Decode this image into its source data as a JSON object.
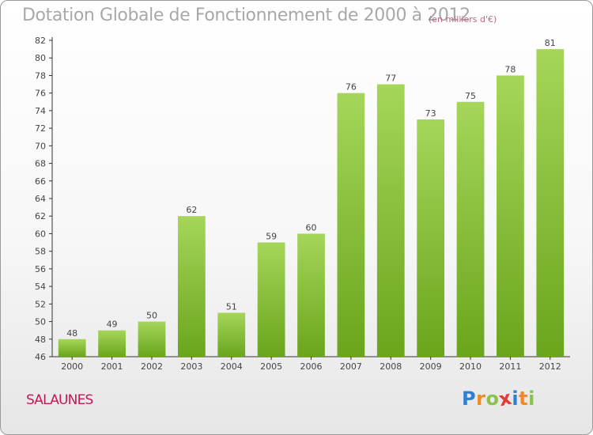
{
  "header": {
    "title": "Dotation Globale de Fonctionnement de 2000 à 2012",
    "unit_note": "(en milliers d'€)"
  },
  "commune": "SALAUNES",
  "brand": {
    "letters": [
      "P",
      "r",
      "o",
      "x",
      "i",
      "t",
      "i"
    ],
    "text": "Proxiti",
    "letter_colors": [
      "#2f7fd2",
      "#f08a1d",
      "#8bc34a",
      "#e53935",
      "#2f7fd2",
      "#f08a1d",
      "#8bc34a"
    ]
  },
  "chart_data": {
    "type": "bar",
    "title": "Dotation Globale de Fonctionnement de 2000 à 2012",
    "subtitle": "(en milliers d'€)",
    "categories": [
      "2000",
      "2001",
      "2002",
      "2003",
      "2004",
      "2005",
      "2006",
      "2007",
      "2008",
      "2009",
      "2010",
      "2011",
      "2012"
    ],
    "values": [
      48,
      49,
      50,
      62,
      51,
      59,
      60,
      76,
      77,
      73,
      75,
      78,
      81
    ],
    "ylim": [
      46,
      82
    ],
    "yticks": [
      46,
      48,
      50,
      52,
      54,
      56,
      58,
      60,
      62,
      64,
      66,
      68,
      70,
      72,
      74,
      76,
      78,
      80,
      82
    ],
    "grid": false,
    "colors": {
      "bar_light": "#a5d65a",
      "bar_dark": "#6aa51c",
      "axis": "#333333"
    }
  }
}
